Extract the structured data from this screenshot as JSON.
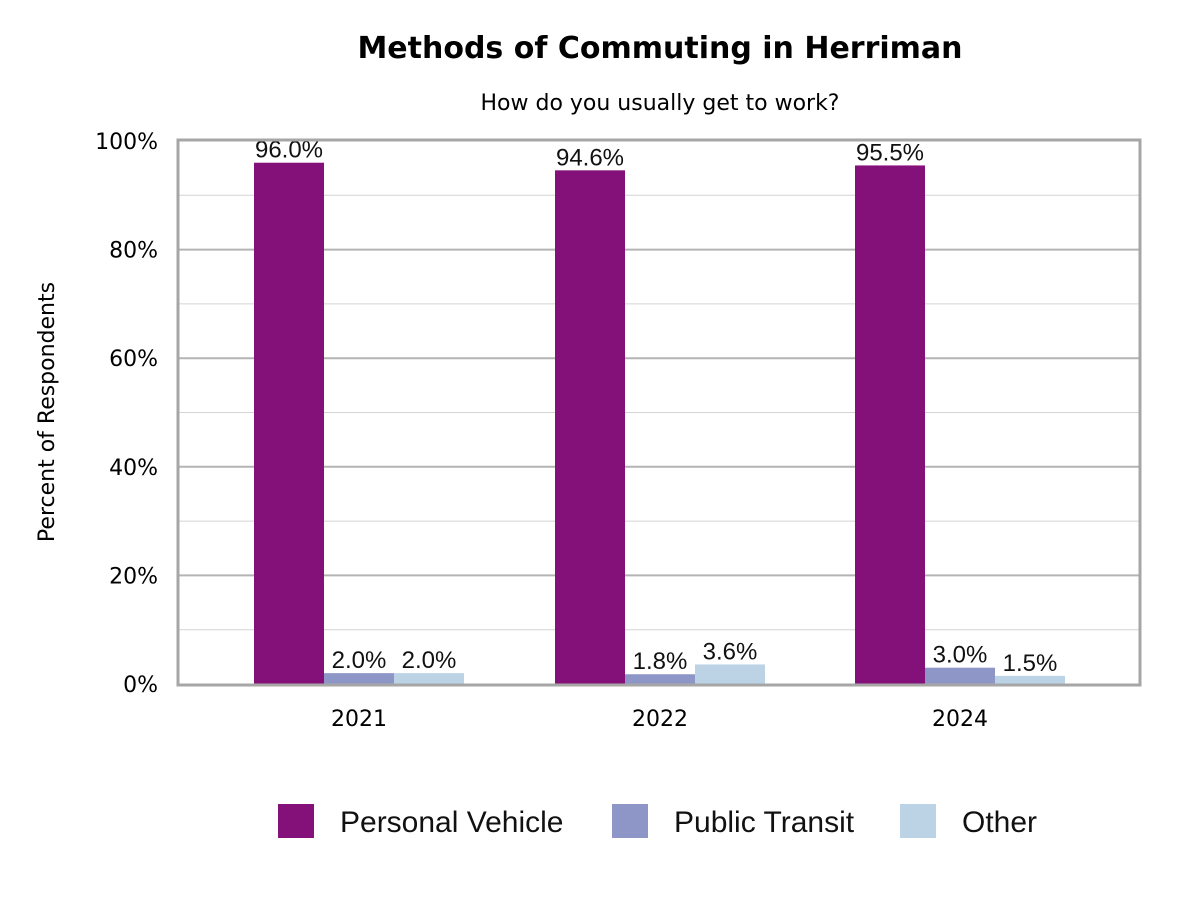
{
  "chart_data": {
    "type": "bar",
    "title": "Methods of Commuting in Herriman",
    "subtitle": "How do you usually get to work?",
    "xlabel": "",
    "ylabel": "Percent of Respondents",
    "ylim": [
      0,
      100
    ],
    "yticks": [
      "0%",
      "20%",
      "40%",
      "60%",
      "80%",
      "100%"
    ],
    "grid": true,
    "legend_position": "bottom",
    "categories": [
      "2021",
      "2022",
      "2024"
    ],
    "series": [
      {
        "name": "Personal Vehicle",
        "color": "#84117A",
        "values": [
          96.0,
          94.6,
          95.5
        ],
        "labels": [
          "96.0%",
          "94.6%",
          "95.5%"
        ]
      },
      {
        "name": "Public Transit",
        "color": "#8E96C8",
        "values": [
          2.0,
          1.8,
          3.0
        ],
        "labels": [
          "2.0%",
          "1.8%",
          "3.0%"
        ]
      },
      {
        "name": "Other",
        "color": "#BCD3E6",
        "values": [
          2.0,
          3.6,
          1.5
        ],
        "labels": [
          "2.0%",
          "3.6%",
          "1.5%"
        ]
      }
    ]
  }
}
